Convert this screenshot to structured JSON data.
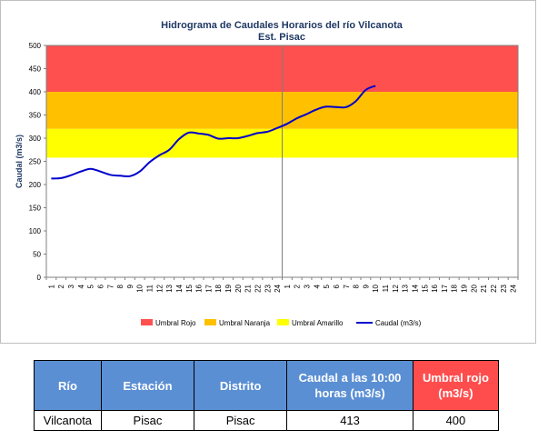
{
  "chart_data": {
    "type": "line",
    "title": "Hidrograma de Caudales Horarios del río Vilcanota",
    "subtitle": "Est. Pisac",
    "ylabel": "Caudal  (m3/s)",
    "xlabel": "",
    "ylim": [
      0,
      500
    ],
    "yticks": [
      0,
      50,
      100,
      150,
      200,
      250,
      300,
      350,
      400,
      450,
      500
    ],
    "xtick_labels": [
      "1",
      "2",
      "3",
      "4",
      "5",
      "6",
      "7",
      "8",
      "9",
      "10",
      "11",
      "12",
      "13",
      "14",
      "15",
      "16",
      "17",
      "18",
      "19",
      "20",
      "21",
      "22",
      "23",
      "24",
      "1",
      "2",
      "3",
      "4",
      "5",
      "6",
      "7",
      "8",
      "9",
      "10",
      "11",
      "12",
      "13",
      "14",
      "15",
      "16",
      "17",
      "18",
      "19",
      "20",
      "21",
      "22",
      "23",
      "24"
    ],
    "thresholds": [
      {
        "name": "Umbral Rojo",
        "from": 400,
        "to": 500,
        "color": "#ff5050"
      },
      {
        "name": "Umbral Naranja",
        "from": 320,
        "to": 400,
        "color": "#ffc000"
      },
      {
        "name": "Umbral Amarillo",
        "from": 258,
        "to": 320,
        "color": "#ffff00"
      }
    ],
    "series": [
      {
        "name": "Caudal (m3/s)",
        "color": "#0000cc",
        "x": [
          1,
          2,
          3,
          4,
          5,
          6,
          7,
          8,
          9,
          10,
          11,
          12,
          13,
          14,
          15,
          16,
          17,
          18,
          19,
          20,
          21,
          22,
          23,
          24,
          25,
          26,
          27,
          28,
          29,
          30,
          31,
          32,
          33,
          34
        ],
        "values": [
          213,
          214,
          220,
          228,
          234,
          228,
          221,
          219,
          218,
          228,
          248,
          263,
          275,
          298,
          312,
          310,
          307,
          299,
          300,
          300,
          305,
          311,
          314,
          322,
          331,
          343,
          352,
          362,
          368,
          367,
          367,
          380,
          404,
          413
        ]
      }
    ],
    "legend_position": "bottom",
    "grid": false
  },
  "table": {
    "headers": [
      "Río",
      "Estación",
      "Distrito",
      "Caudal a las 10:00 horas (m3/s)",
      "Umbral rojo (m3/s)"
    ],
    "row": [
      "Vilcanota",
      "Pisac",
      "Pisac",
      "413",
      "400"
    ]
  }
}
